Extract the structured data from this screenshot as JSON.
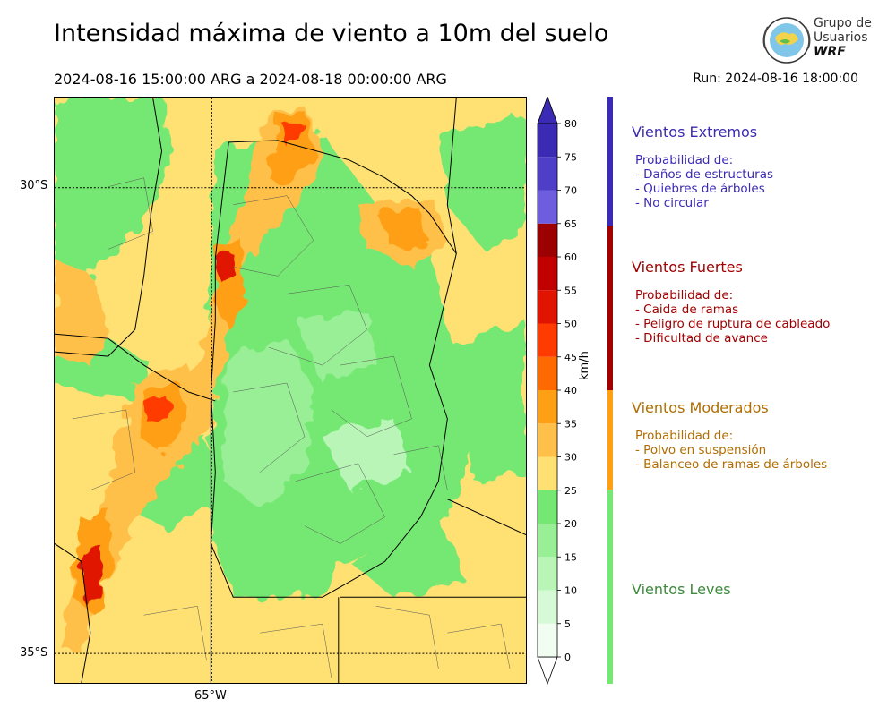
{
  "header": {
    "title": "Intensidad máxima de viento a 10m del suelo",
    "period": "2024-08-16 15:00:00 ARG  a  2024-08-18 00:00:00 ARG",
    "run": "Run: 2024-08-16 18:00:00"
  },
  "logo": {
    "line1": "Grupo de",
    "line2": "Usuarios",
    "line3": "WRF"
  },
  "map": {
    "lat_labels": [
      "30°S",
      "35°S"
    ],
    "lon_labels": [
      "65°W"
    ]
  },
  "colorbar": {
    "units": "km/h",
    "ticks": [
      "0",
      "5",
      "10",
      "15",
      "20",
      "25",
      "30",
      "35",
      "40",
      "45",
      "50",
      "55",
      "60",
      "65",
      "70",
      "75",
      "80"
    ],
    "colors": [
      "#f2fdf2",
      "#d6fad5",
      "#b8f5b6",
      "#98ef95",
      "#75e873",
      "#ffe173",
      "#ffc04a",
      "#ff9f13",
      "#ff6a00",
      "#ff3b00",
      "#e01400",
      "#c10000",
      "#9c0000",
      "#6e5ddf",
      "#4e3ec8",
      "#3b2ab4"
    ],
    "under_color": "#ffffff",
    "over_color": "#3b2ab4"
  },
  "legend": {
    "categories": [
      {
        "title": "Vientos Extremos",
        "color": "#3b2ab4",
        "lines": [
          "Probabilidad de:",
          "- Daños de estructuras",
          "- Quiebres de árboles",
          "- No circular"
        ]
      },
      {
        "title": "Vientos Fuertes",
        "color": "#a00000",
        "lines": [
          "Probabilidad de:",
          "- Caida de ramas",
          "- Peligro de ruptura de cableado",
          "- Dificultad de avance"
        ]
      },
      {
        "title": "Vientos Moderados",
        "color": "#b06d00",
        "lines": [
          "Probabilidad de:",
          "- Polvo en suspensión",
          "- Balanceo de ramas de árboles"
        ]
      },
      {
        "title": "Vientos Leves",
        "color": "#3c8a3c",
        "lines": []
      }
    ],
    "bar_colors": [
      "#3b2ab4",
      "#a00000",
      "#ff9f13",
      "#75e873"
    ]
  }
}
